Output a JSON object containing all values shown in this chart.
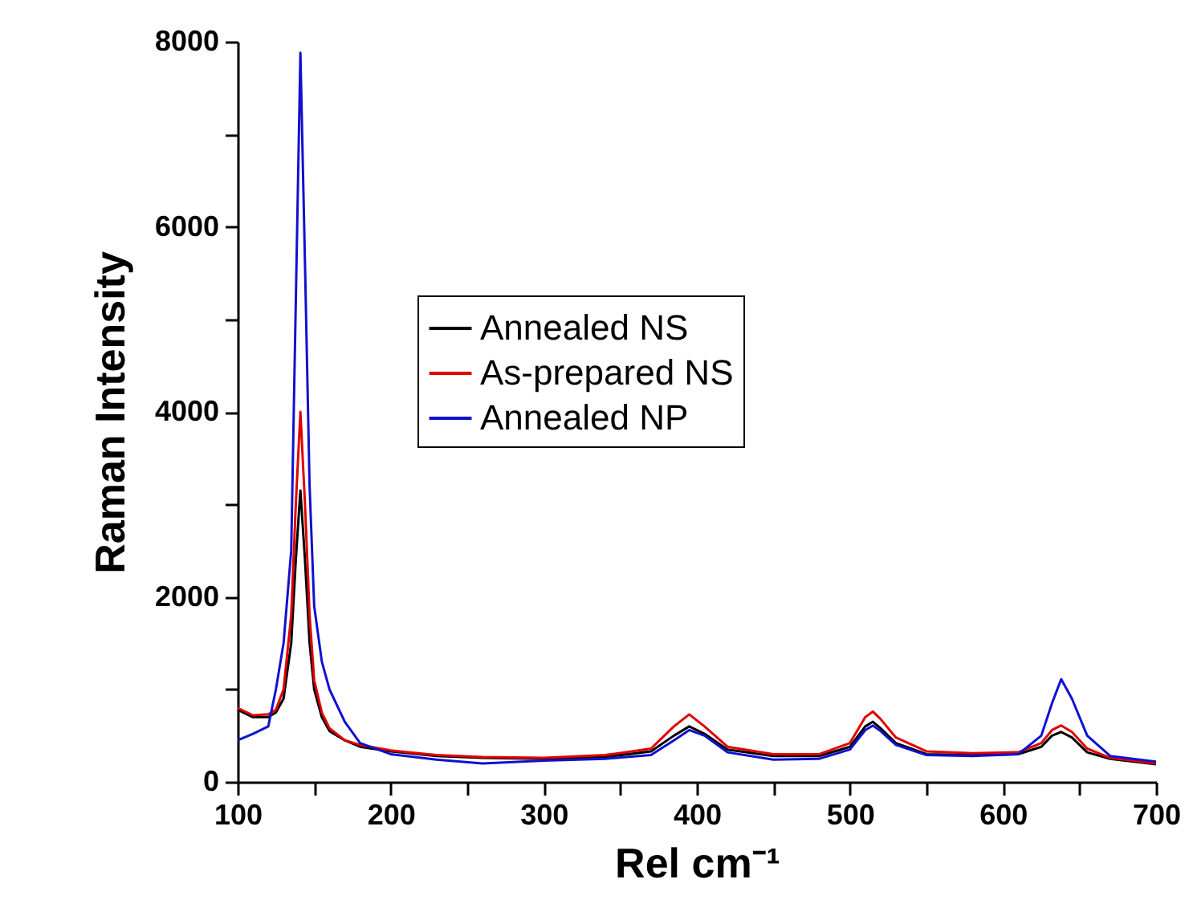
{
  "chart_data": {
    "type": "line",
    "xlabel": "Rel cm⁻¹",
    "ylabel": "Raman Intensity",
    "xlim": [
      100,
      700
    ],
    "ylim": [
      0,
      8000
    ],
    "xticks": [
      100,
      {
        "value": 150,
        "label": null
      },
      200,
      {
        "value": 250,
        "label": null
      },
      300,
      {
        "value": 350,
        "label": null
      },
      400,
      {
        "value": 450,
        "label": null
      },
      500,
      {
        "value": 550,
        "label": null
      },
      600,
      {
        "value": 650,
        "label": null
      },
      700
    ],
    "yticks": [
      0,
      {
        "value": 1000,
        "label": null
      },
      2000,
      {
        "value": 3000,
        "label": null
      },
      4000,
      {
        "value": 5000,
        "label": null
      },
      6000,
      {
        "value": 7000,
        "label": null
      },
      8000
    ],
    "grid": false,
    "legend": "top",
    "marker": "none",
    "line_style": "solid",
    "x": [
      100,
      110,
      120,
      125,
      130,
      135,
      138,
      141,
      144,
      147,
      150,
      155,
      160,
      170,
      180,
      200,
      230,
      260,
      300,
      340,
      370,
      385,
      395,
      405,
      420,
      450,
      480,
      500,
      510,
      515,
      520,
      530,
      550,
      580,
      610,
      625,
      632,
      638,
      645,
      655,
      670,
      700
    ],
    "series": [
      {
        "name": "Annealed NS",
        "color": "#000000",
        "values": [
          780,
          700,
          700,
          750,
          900,
          1500,
          2400,
          3150,
          2400,
          1500,
          1000,
          700,
          550,
          450,
          380,
          330,
          280,
          260,
          250,
          270,
          330,
          500,
          600,
          520,
          350,
          280,
          280,
          380,
          600,
          650,
          580,
          420,
          300,
          290,
          300,
          380,
          500,
          540,
          480,
          320,
          250,
          190
        ]
      },
      {
        "name": "As-prepared NS",
        "color": "#e00000",
        "values": [
          800,
          720,
          730,
          780,
          1000,
          1800,
          3000,
          4000,
          3000,
          1800,
          1100,
          750,
          580,
          450,
          400,
          340,
          290,
          270,
          260,
          290,
          360,
          600,
          730,
          600,
          380,
          300,
          300,
          420,
          700,
          760,
          680,
          480,
          330,
          310,
          320,
          420,
          560,
          610,
          540,
          360,
          260,
          200
        ]
      },
      {
        "name": "Annealed NP",
        "color": "#1010d0",
        "values": [
          450,
          520,
          600,
          1000,
          1500,
          2500,
          5200,
          7880,
          5600,
          3200,
          1900,
          1300,
          1000,
          650,
          420,
          300,
          240,
          200,
          230,
          250,
          290,
          450,
          560,
          500,
          320,
          240,
          250,
          350,
          560,
          610,
          550,
          400,
          290,
          280,
          300,
          500,
          850,
          1110,
          900,
          500,
          280,
          220
        ]
      }
    ]
  }
}
